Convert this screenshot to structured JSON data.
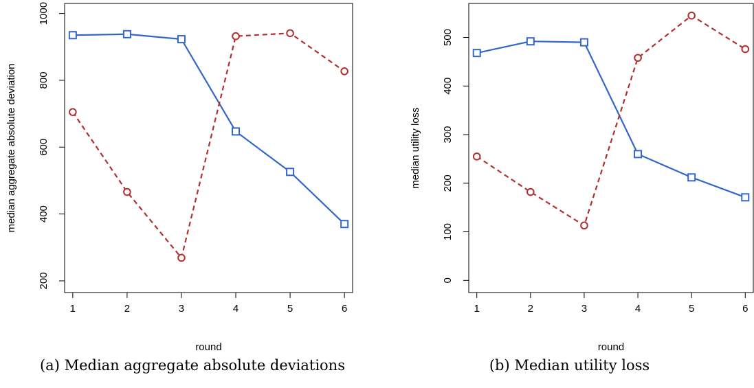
{
  "chart_data": [
    {
      "type": "line",
      "xlabel": "round",
      "ylabel": "median aggregate absolute deviation",
      "caption": "(a) Median aggregate absolute deviations",
      "x": [
        1,
        2,
        3,
        4,
        5,
        6
      ],
      "xticks": [
        "1",
        "2",
        "3",
        "4",
        "5",
        "6"
      ],
      "xlim": [
        0.85,
        6.15
      ],
      "ylim": [
        165,
        1030
      ],
      "yticks": [
        200,
        400,
        600,
        800,
        1000
      ],
      "grid": false,
      "series": [
        {
          "color": "#3366cc",
          "line": "solid",
          "marker": "square",
          "values": [
            935,
            938,
            923,
            647,
            526,
            370
          ]
        },
        {
          "color": "#b03030",
          "line": "dashed",
          "marker": "circle",
          "values": [
            705,
            466,
            269,
            932,
            941,
            827
          ]
        }
      ]
    },
    {
      "type": "line",
      "xlabel": "round",
      "ylabel": "median utility loss",
      "caption": "(b) Median utility loss",
      "x": [
        1,
        2,
        3,
        4,
        5,
        6
      ],
      "xticks": [
        "1",
        "2",
        "3",
        "4",
        "5",
        "6"
      ],
      "xlim": [
        0.85,
        6.15
      ],
      "ylim": [
        -25,
        570
      ],
      "yticks": [
        0,
        100,
        200,
        300,
        400,
        500
      ],
      "grid": false,
      "series": [
        {
          "color": "#3366cc",
          "line": "solid",
          "marker": "square",
          "values": [
            468,
            492,
            490,
            260,
            212,
            171
          ]
        },
        {
          "color": "#b03030",
          "line": "dashed",
          "marker": "circle",
          "values": [
            255,
            182,
            113,
            458,
            545,
            476
          ]
        }
      ]
    }
  ]
}
